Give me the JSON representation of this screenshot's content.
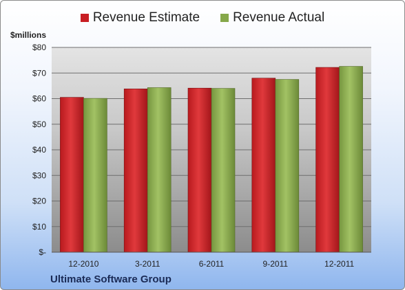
{
  "chart_data": {
    "type": "bar",
    "title": "",
    "ylabel": "$millions",
    "xlabel": "",
    "footer": "Ultimate Software Group",
    "categories": [
      "12-2010",
      "3-2011",
      "6-2011",
      "9-2011",
      "12-2011"
    ],
    "series": [
      {
        "name": "Revenue Estimate",
        "color": "#c81e23",
        "values": [
          60.5,
          63.8,
          64.1,
          68.0,
          72.2
        ]
      },
      {
        "name": "Revenue Actual",
        "color": "#86a84a",
        "values": [
          60.1,
          64.3,
          64.0,
          67.5,
          72.6
        ]
      }
    ],
    "ylim": [
      0,
      80
    ],
    "yticks": [
      {
        "value": 0,
        "label": "$-"
      },
      {
        "value": 10,
        "label": "$10"
      },
      {
        "value": 20,
        "label": "$20"
      },
      {
        "value": 30,
        "label": "$30"
      },
      {
        "value": 40,
        "label": "$40"
      },
      {
        "value": 50,
        "label": "$50"
      },
      {
        "value": 60,
        "label": "$60"
      },
      {
        "value": 70,
        "label": "$70"
      },
      {
        "value": 80,
        "label": "$80"
      }
    ],
    "grid": true,
    "legend_position": "top"
  }
}
